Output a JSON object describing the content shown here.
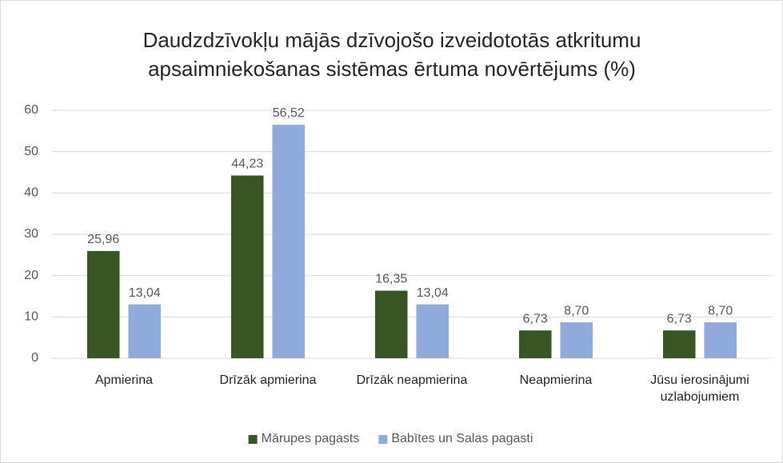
{
  "chart_data": {
    "type": "bar",
    "title": "Daudzdzīvokļu mājās dzīvojošo izveidototās atkritumu apsaimniekošanas sistēmas ērtuma novērtējums (%)",
    "categories": [
      "Apmierina",
      "Drīzāk apmierina",
      "Drīzāk neapmierina",
      "Neapmierina",
      "Jūsu ierosinājumi uzlabojumiem"
    ],
    "series": [
      {
        "name": "Mārupes pagasts",
        "color": "#375623",
        "values": [
          25.96,
          44.23,
          16.35,
          6.73,
          6.73
        ],
        "value_labels": [
          "25,96",
          "44,23",
          "16,35",
          "6,73",
          "6,73"
        ]
      },
      {
        "name": "Babītes un Salas pagasti",
        "color": "#8faadc",
        "values": [
          13.04,
          56.52,
          13.04,
          8.7,
          8.7
        ],
        "value_labels": [
          "13,04",
          "56,52",
          "13,04",
          "8,70",
          "8,70"
        ]
      }
    ],
    "ylim": [
      0,
      60
    ],
    "yticks": [
      0,
      10,
      20,
      30,
      40,
      50,
      60
    ],
    "grid": true,
    "legend": "bottom"
  }
}
